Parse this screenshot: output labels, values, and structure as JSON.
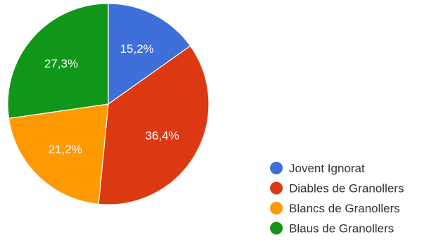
{
  "chart_data": {
    "type": "pie",
    "start_angle_deg": 90,
    "direction": "clockwise",
    "legend_position": "right-bottom",
    "slices": [
      {
        "label": "Jovent Ignorat",
        "value": 15.2,
        "display": "15,2%",
        "color": "#3f6fd8"
      },
      {
        "label": "Diables de Granollers",
        "value": 36.4,
        "display": "36,4%",
        "color": "#dc3912"
      },
      {
        "label": "Blancs de Granollers",
        "value": 21.2,
        "display": "21,2%",
        "color": "#ff9900"
      },
      {
        "label": "Blaus de Granollers",
        "value": 27.3,
        "display": "27,3%",
        "color": "#109618"
      }
    ]
  }
}
